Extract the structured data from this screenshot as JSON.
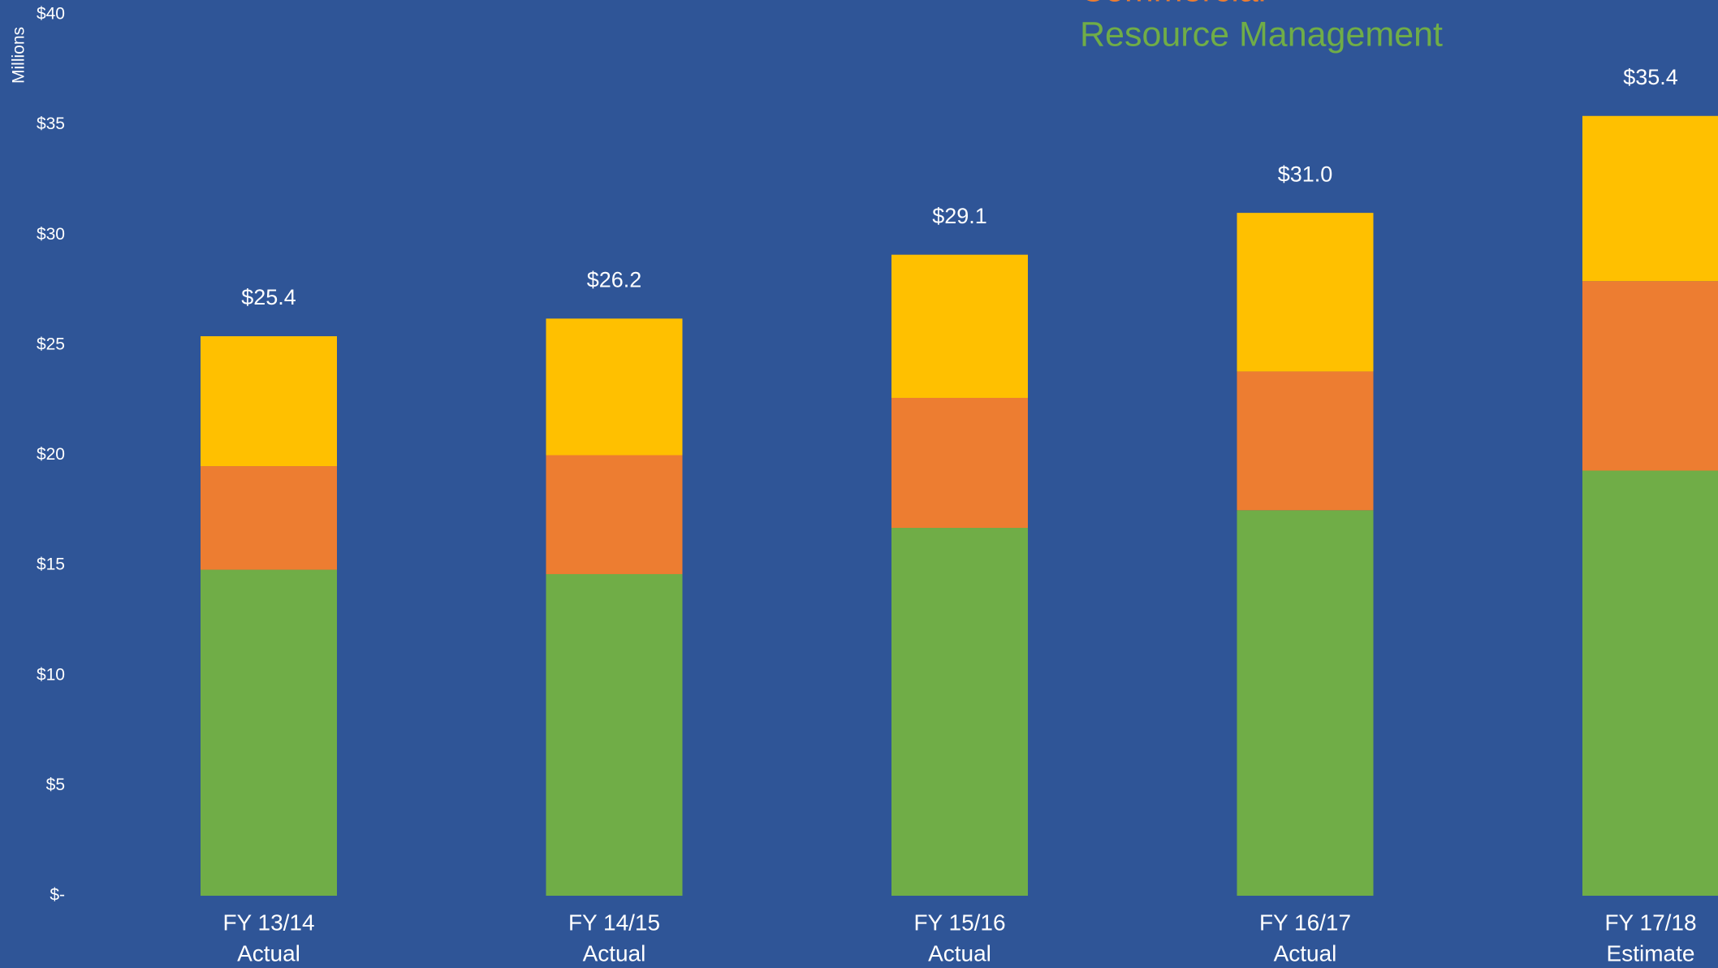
{
  "chart_data": {
    "type": "stacked_bar",
    "y_axis_label": "Millions",
    "categories": [
      [
        "FY 13/14",
        "Actual"
      ],
      [
        "FY 14/15",
        "Actual"
      ],
      [
        "FY 15/16",
        "Actual"
      ],
      [
        "FY 16/17",
        "Actual"
      ],
      [
        "FY 17/18",
        "Estimate"
      ]
    ],
    "series": [
      {
        "name": "Resource Management",
        "color": "#70ad47",
        "values": [
          14.8,
          14.6,
          16.7,
          17.5,
          19.3
        ]
      },
      {
        "name": "Commercial",
        "color": "#ed7d31",
        "values": [
          4.7,
          5.4,
          5.9,
          6.3,
          8.6
        ]
      },
      {
        "name": null,
        "color": "#ffc000",
        "values": [
          5.9,
          6.2,
          6.5,
          7.2,
          7.5
        ]
      }
    ],
    "totals": {
      "values": [
        25.4,
        26.2,
        29.1,
        31.0,
        35.4
      ],
      "value_labels": [
        "$25.4",
        "$26.2",
        "$29.1",
        "$31.0",
        "$35.4"
      ]
    },
    "ylim": [
      0,
      40
    ],
    "yticks": [
      {
        "value": 0,
        "label": "$-"
      },
      {
        "value": 5,
        "label": "$5"
      },
      {
        "value": 10,
        "label": "$10"
      },
      {
        "value": 15,
        "label": "$15"
      },
      {
        "value": 20,
        "label": "$20"
      },
      {
        "value": 25,
        "label": "$25"
      },
      {
        "value": 30,
        "label": "$30"
      },
      {
        "value": 35,
        "label": "$35"
      },
      {
        "value": 40,
        "label": "$40"
      }
    ],
    "grid": false,
    "legend": "top-right"
  }
}
